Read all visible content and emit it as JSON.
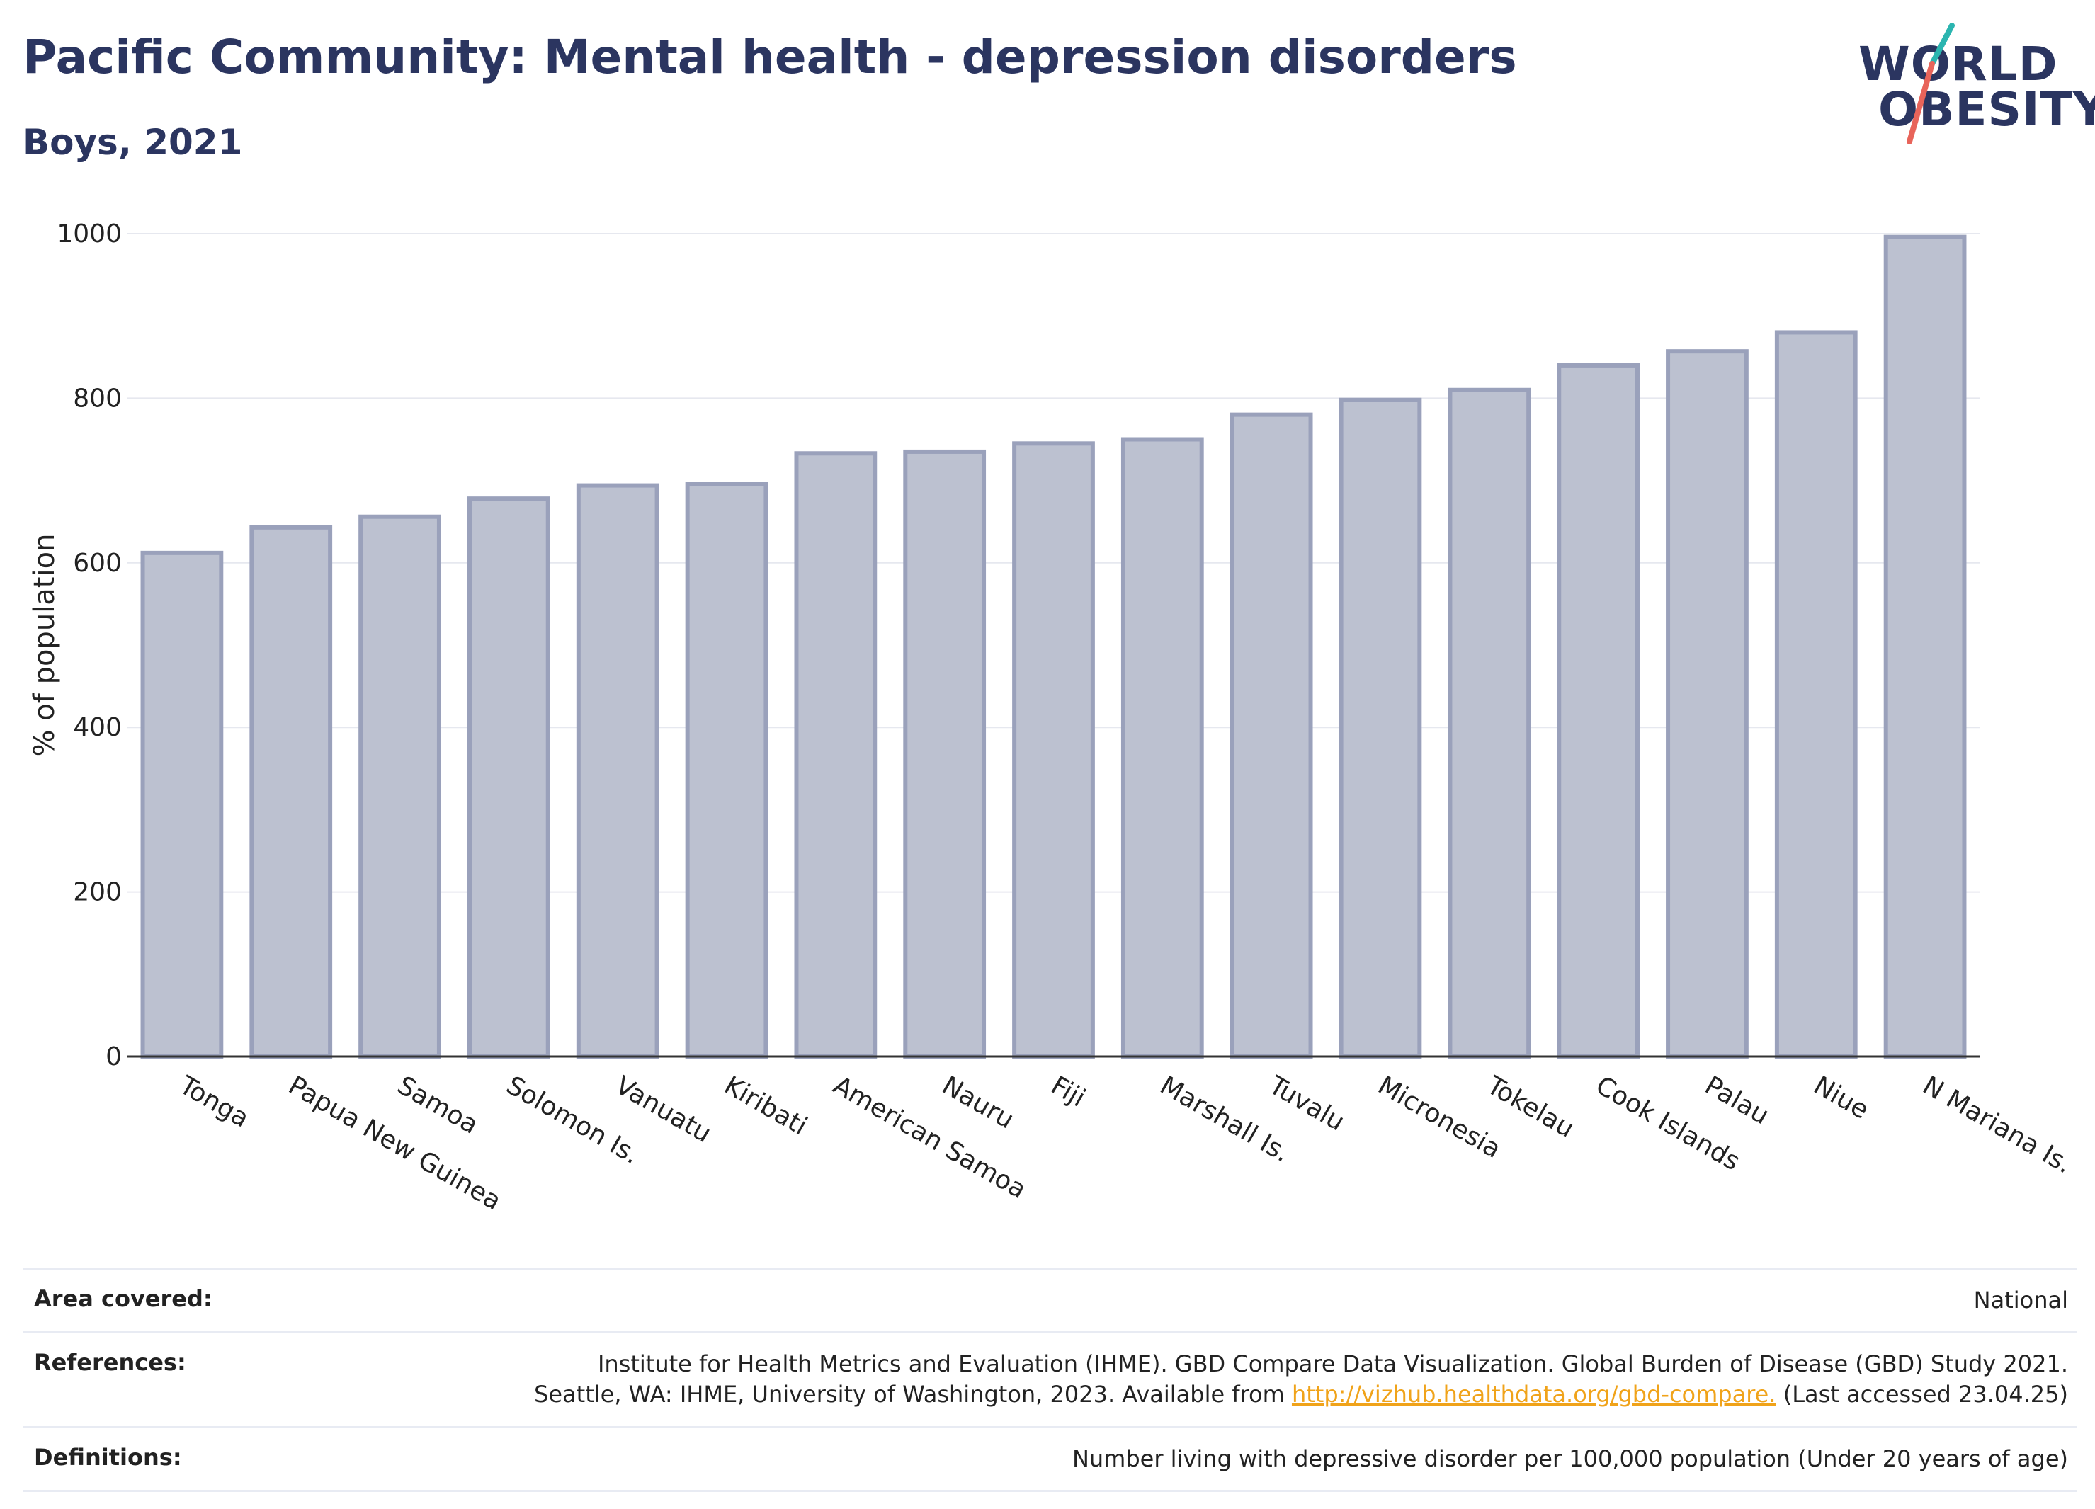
{
  "header": {
    "title": "Pacific Community: Mental health - depression disorders",
    "subtitle": "Boys, 2021"
  },
  "logo": {
    "line1": "WORLD",
    "line2": "OBESITY",
    "colors": {
      "text": "#2b3560",
      "slash_top": "#2bb5b0",
      "slash_bottom": "#e8645a"
    }
  },
  "chart_data": {
    "type": "bar",
    "ylabel": "% of population",
    "xlabel": "",
    "ylim": [
      0,
      1000
    ],
    "yticks": [
      0,
      200,
      400,
      600,
      800,
      1000
    ],
    "grid": true,
    "categories": [
      "Tonga",
      "Papua New Guinea",
      "Samoa",
      "Solomon Is.",
      "Vanuatu",
      "Kiribati",
      "American Samoa",
      "Nauru",
      "Fiji",
      "Marshall Is.",
      "Tuvalu",
      "Micronesia",
      "Tokelau",
      "Cook Islands",
      "Palau",
      "Niue",
      "N Mariana Is."
    ],
    "values": [
      612,
      643,
      656,
      678,
      694,
      696,
      733,
      735,
      745,
      750,
      780,
      798,
      810,
      840,
      857,
      880,
      996
    ],
    "bar_fill": "#bcc1d0",
    "bar_stroke": "#9aa1bb"
  },
  "footer": {
    "area_label": "Area covered:",
    "area_value": "National",
    "references_label": "References:",
    "references_line1": "Institute for Health Metrics and Evaluation (IHME). GBD Compare Data Visualization. Global Burden of Disease (GBD) Study 2021.",
    "references_line2_pre": "Seattle, WA: IHME, University of Washington, 2023. Available from ",
    "references_link": "http://vizhub.healthdata.org/gbd-compare.",
    "references_line2_post": " (Last accessed 23.04.25)",
    "definitions_label": "Definitions:",
    "definitions_value": "Number living with depressive disorder per 100,000 population (Under 20 years of age)"
  }
}
